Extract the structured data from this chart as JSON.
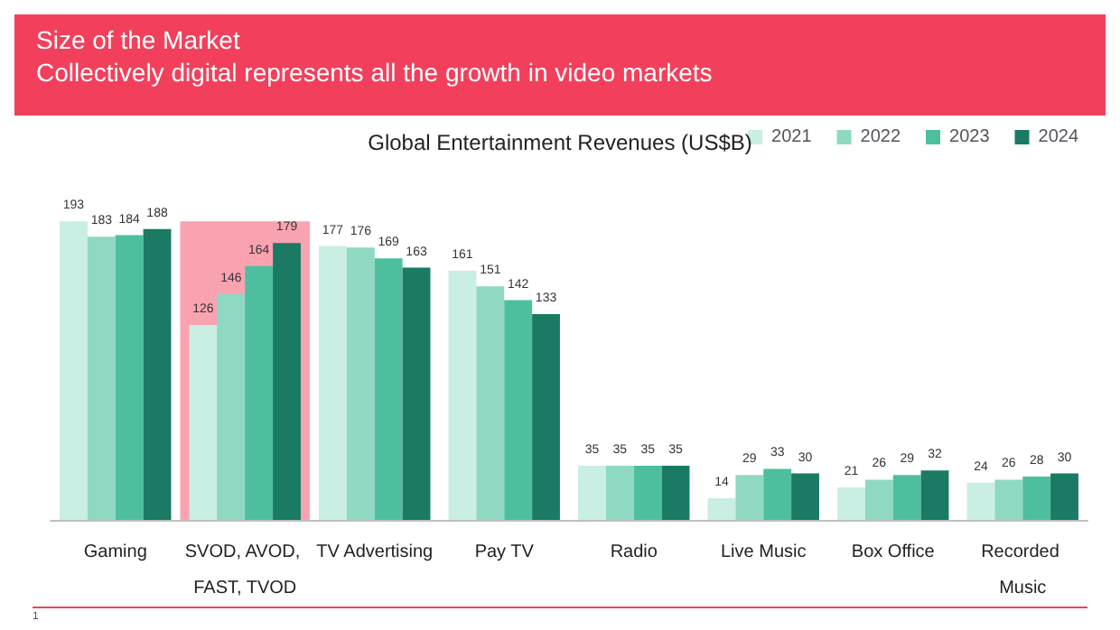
{
  "chart_data": {
    "type": "bar",
    "title": "Size of the Market",
    "subtitle": "Collectively digital represents all the growth in video markets",
    "ylabel": "Global Entertainment Revenues (US$B)",
    "categories": [
      "Gaming",
      "SVOD, AVOD, FAST, TVOD",
      "TV Advertising",
      "Pay TV",
      "Radio",
      "Live Music",
      "Box Office",
      "Recorded Music"
    ],
    "series": [
      {
        "name": "2021",
        "color": "#c9eee3",
        "values": [
          193,
          126,
          177,
          161,
          35,
          14,
          21,
          24
        ]
      },
      {
        "name": "2022",
        "color": "#8fd9c3",
        "values": [
          183,
          146,
          176,
          151,
          35,
          29,
          26,
          26
        ]
      },
      {
        "name": "2023",
        "color": "#4dbf9f",
        "values": [
          184,
          164,
          169,
          142,
          35,
          33,
          29,
          28
        ]
      },
      {
        "name": "2024",
        "color": "#1b7a63",
        "values": [
          188,
          179,
          163,
          133,
          35,
          30,
          32,
          30
        ]
      }
    ],
    "bands": [
      {
        "axis": "x",
        "from": "SVOD, AVOD, FAST, TVOD",
        "to": "SVOD, AVOD, FAST, TVOD",
        "color": "#f9a3b1"
      }
    ],
    "data_labels": true,
    "legend": "top right",
    "grid": false,
    "annotations": [
      "1"
    ]
  }
}
